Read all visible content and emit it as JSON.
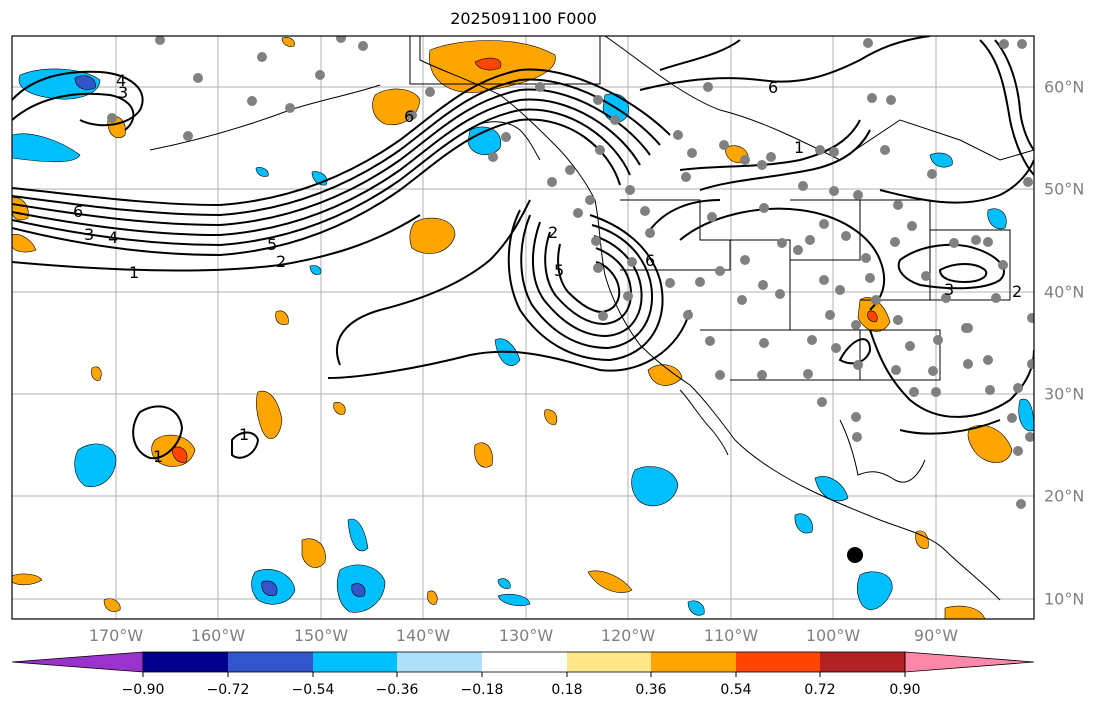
{
  "title": "2025091100 F000",
  "longitude_labels": [
    "170°W",
    "160°W",
    "150°W",
    "140°W",
    "130°W",
    "120°W",
    "110°W",
    "100°W",
    "90°W"
  ],
  "latitude_labels": [
    "60°N",
    "50°N",
    "40°N",
    "30°N",
    "20°N",
    "10°N"
  ],
  "colorbar": {
    "ticks": [
      "−0.90",
      "−0.72",
      "−0.54",
      "−0.36",
      "−0.18",
      "0.18",
      "0.36",
      "0.54",
      "0.72",
      "0.90"
    ],
    "colors": [
      "#9933cc",
      "#00008b",
      "#3355cc",
      "#00bfff",
      "#aee0fa",
      "#ffffff",
      "#ffe88a",
      "#ffa500",
      "#ff4500",
      "#b22222",
      "#ff88aa"
    ]
  },
  "contour_labels": [
    "6",
    "5",
    "4",
    "3",
    "2",
    "1",
    "6",
    "5",
    "4",
    "3",
    "2",
    "6",
    "1",
    "3",
    "2",
    "1",
    "1",
    "6"
  ],
  "colors": {
    "ocean": "#ffffff",
    "contour": "#000000",
    "station": "#808080",
    "grid": "#b0b0b0",
    "label": "#808080"
  }
}
